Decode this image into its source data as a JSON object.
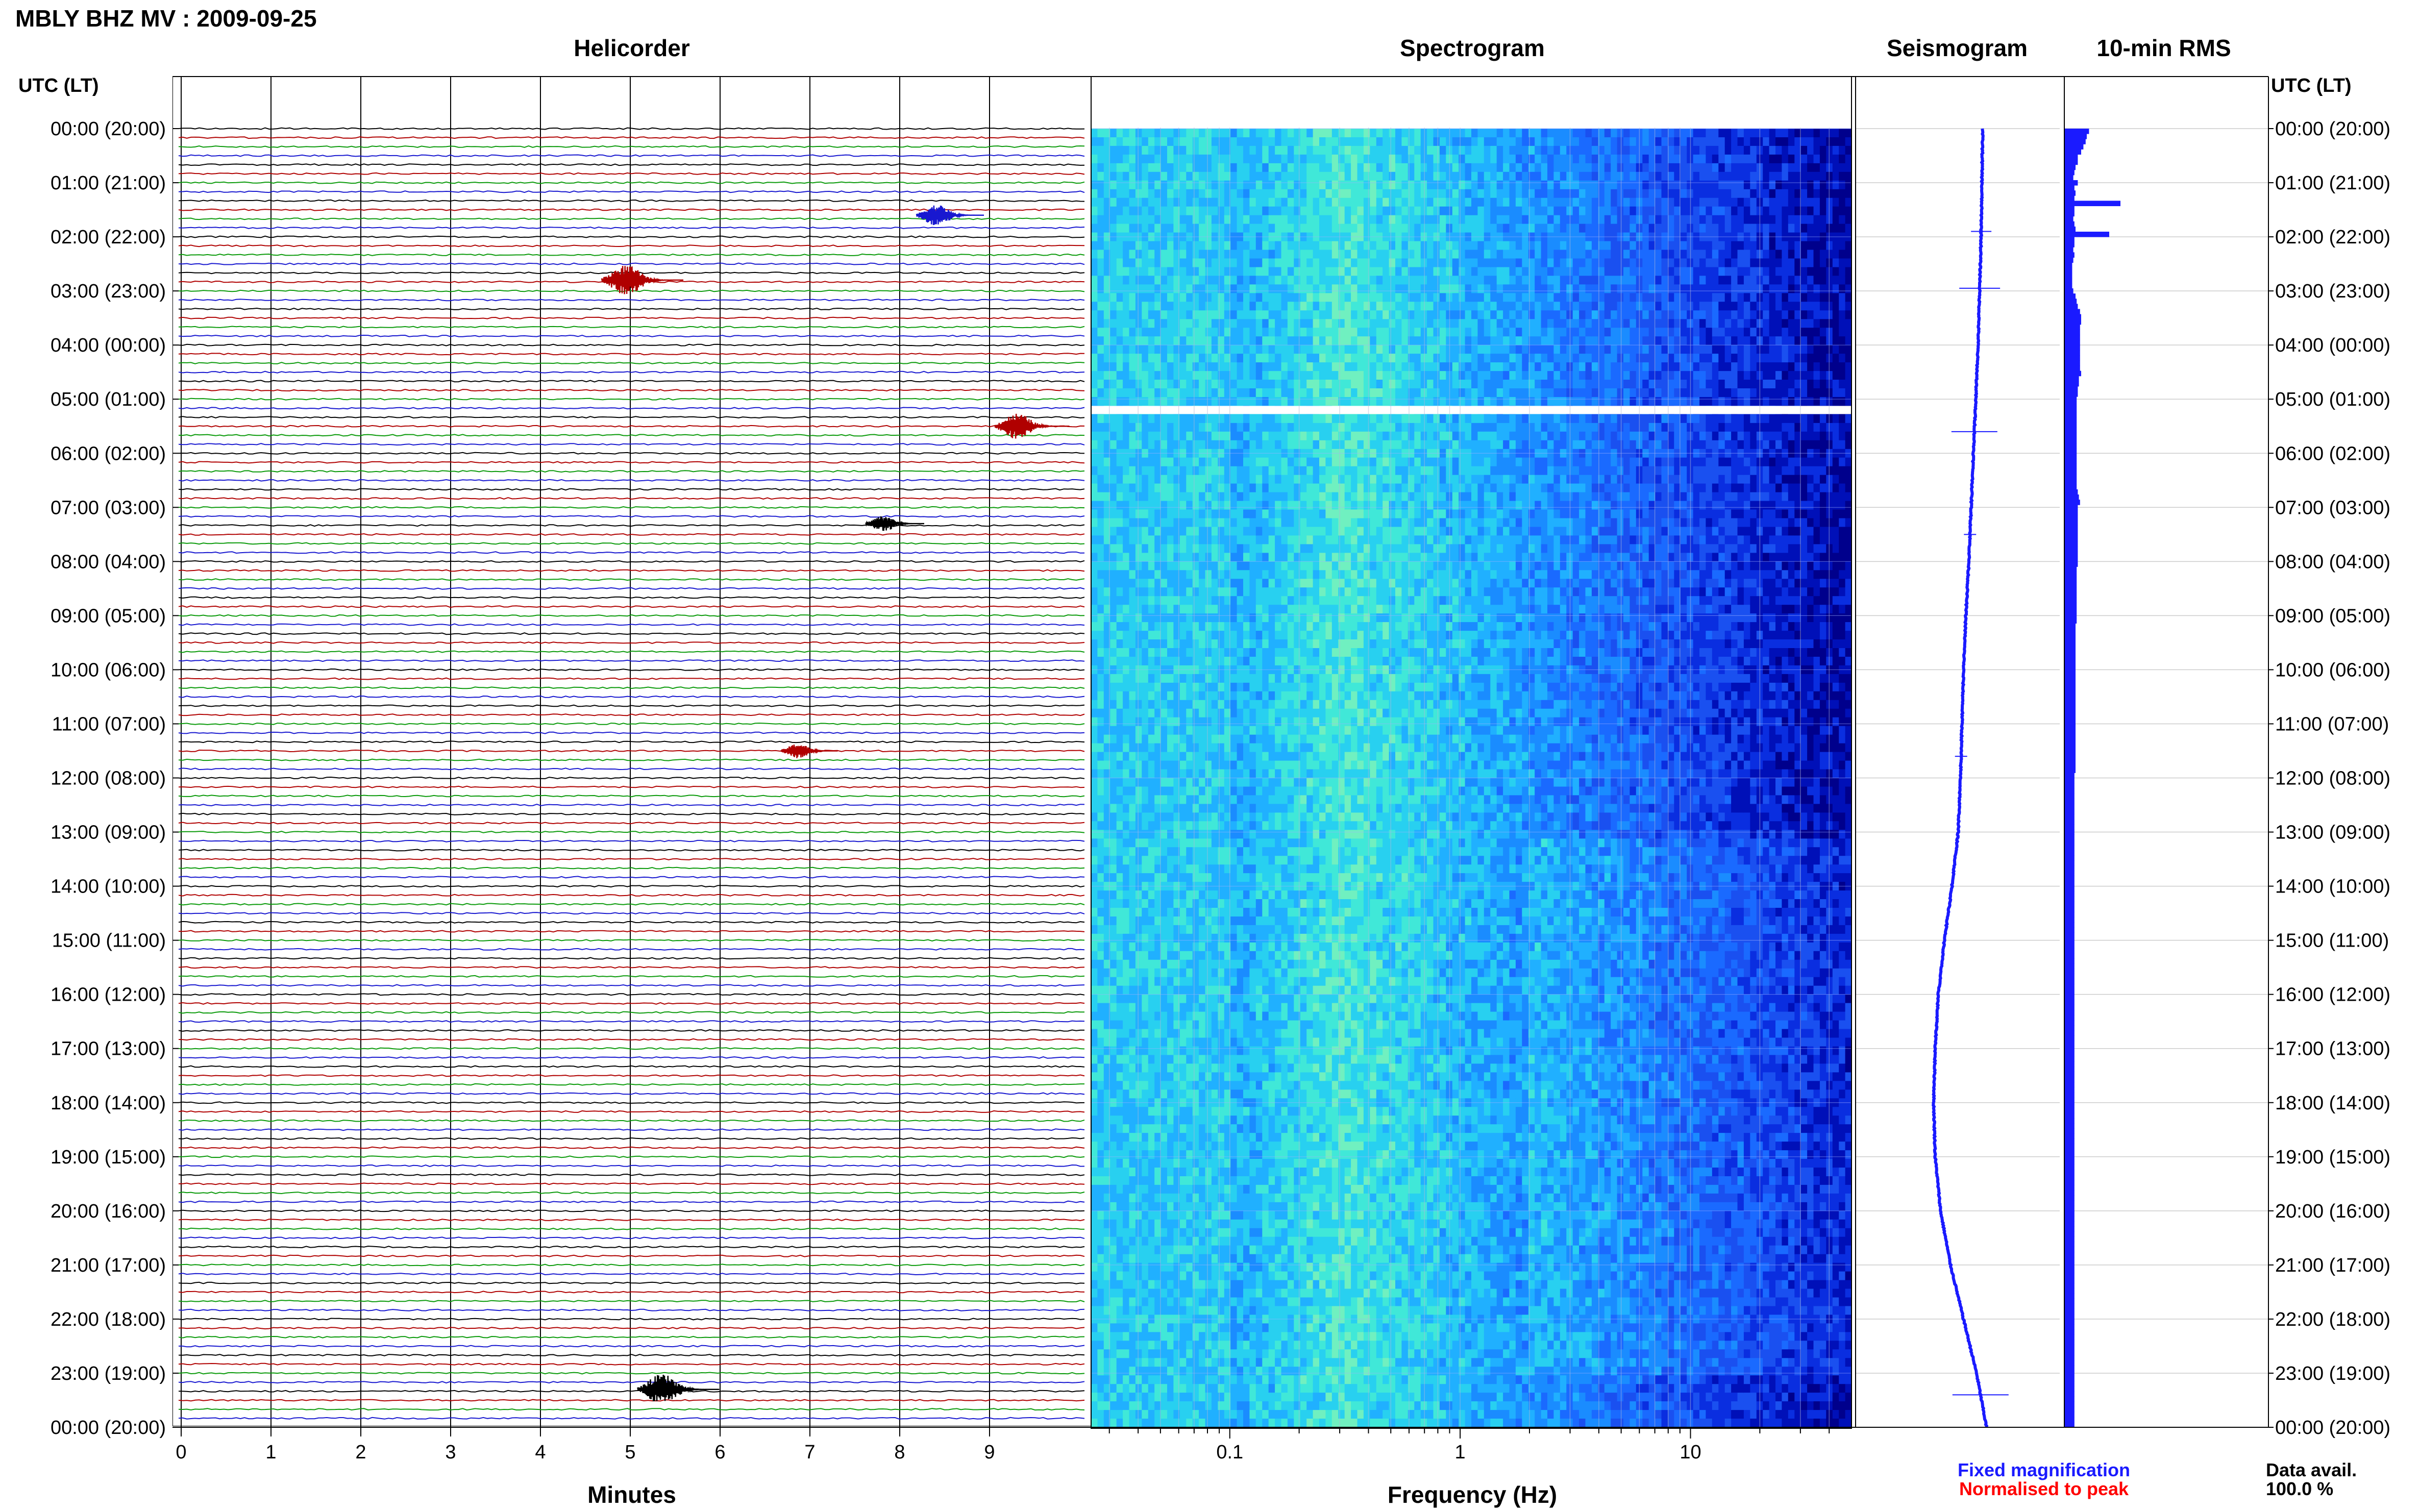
{
  "page_title": "MBLY BHZ MV : 2009-09-25",
  "time_axis_label": "UTC (LT)",
  "time_labels": [
    "00:00 (20:00)",
    "01:00 (21:00)",
    "02:00 (22:00)",
    "03:00 (23:00)",
    "04:00 (00:00)",
    "05:00 (01:00)",
    "06:00 (02:00)",
    "07:00 (03:00)",
    "08:00 (04:00)",
    "09:00 (05:00)",
    "10:00 (06:00)",
    "11:00 (07:00)",
    "12:00 (08:00)",
    "13:00 (09:00)",
    "14:00 (10:00)",
    "15:00 (11:00)",
    "16:00 (12:00)",
    "17:00 (13:00)",
    "18:00 (14:00)",
    "19:00 (15:00)",
    "20:00 (16:00)",
    "21:00 (17:00)",
    "22:00 (18:00)",
    "23:00 (19:00)",
    "00:00 (20:00)"
  ],
  "colors": {
    "trace_cycle": [
      "#000000",
      "#b00000",
      "#0a9a0a",
      "#1818d0"
    ],
    "seismogram": "#1a1aff",
    "rms": "#1a1aff",
    "fixed_legend": "#1a1aff",
    "normalised_legend": "#ff0000",
    "spectrogram_low": "#00008c",
    "spectrogram_mid": "#1a6aff",
    "spectrogram_high": "#40e8d8"
  },
  "chart_data": [
    {
      "type": "line",
      "panel": "helicorder",
      "title": "Helicorder",
      "xlabel": "Minutes",
      "x_ticks": [
        "0",
        "1",
        "2",
        "3",
        "4",
        "5",
        "6",
        "7",
        "8",
        "9"
      ],
      "xlim": [
        0,
        10
      ],
      "rows_per_hour": 6,
      "events": [
        {
          "hour": 1.6,
          "minute": 8.45,
          "amplitude": 0.6,
          "color": "#1818d0"
        },
        {
          "hour": 2.8,
          "minute": 5.0,
          "amplitude": 1.0,
          "color": "#b00000"
        },
        {
          "hour": 5.5,
          "minute": 9.35,
          "amplitude": 0.8,
          "color": "#b00000"
        },
        {
          "hour": 7.3,
          "minute": 7.85,
          "amplitude": 0.35,
          "color": "#000000"
        },
        {
          "hour": 11.5,
          "minute": 6.9,
          "amplitude": 0.3,
          "color": "#b00000"
        },
        {
          "hour": 23.3,
          "minute": 5.4,
          "amplitude": 1.0,
          "color": "#000000"
        }
      ],
      "data_gap_hour": 5.2
    },
    {
      "type": "heatmap",
      "panel": "spectrogram",
      "title": "Spectrogram",
      "xlabel": "Frequency (Hz)",
      "x_scale": "log",
      "xlim": [
        0.025,
        50
      ],
      "x_tick_labels": [
        {
          "value": 0.1,
          "label": "0.1"
        },
        {
          "value": 1,
          "label": "1"
        },
        {
          "value": 10,
          "label": "10"
        }
      ],
      "peak_frequency_hz": 0.3,
      "data_gap_hour": 5.2
    },
    {
      "type": "line",
      "panel": "seismogram",
      "title": "Seismogram",
      "x": [
        0,
        1,
        2,
        3,
        4,
        5,
        6,
        7,
        8,
        9,
        10,
        11,
        12,
        13,
        14,
        15,
        16,
        17,
        18,
        19,
        20,
        21,
        22,
        23,
        24
      ],
      "y": [
        0,
        -0.01,
        -0.02,
        -0.04,
        -0.06,
        -0.09,
        -0.12,
        -0.15,
        -0.18,
        -0.22,
        -0.25,
        -0.27,
        -0.29,
        -0.32,
        -0.4,
        -0.5,
        -0.58,
        -0.62,
        -0.64,
        -0.62,
        -0.55,
        -0.42,
        -0.25,
        -0.08,
        0.05
      ],
      "spikes": [
        {
          "hour": 1.9,
          "amplitude": 0.2
        },
        {
          "hour": 2.95,
          "amplitude": 0.4
        },
        {
          "hour": 5.6,
          "amplitude": 0.45
        },
        {
          "hour": 7.5,
          "amplitude": 0.12
        },
        {
          "hour": 11.6,
          "amplitude": 0.12
        },
        {
          "hour": 23.4,
          "amplitude": 0.55
        }
      ]
    },
    {
      "type": "bar",
      "panel": "rms",
      "title": "10-min RMS",
      "bins_per_hour": 6,
      "values": [
        0.22,
        0.2,
        0.19,
        0.17,
        0.15,
        0.12,
        0.12,
        0.1,
        0.09,
        0.08,
        0.12,
        0.09,
        0.1,
        0.09,
        0.5,
        0.09,
        0.09,
        0.08,
        0.09,
        0.1,
        0.4,
        0.09,
        0.09,
        0.08,
        0.09,
        0.08,
        0.07,
        0.07,
        0.07,
        0.07,
        0.07,
        0.08,
        0.1,
        0.11,
        0.12,
        0.14,
        0.15,
        0.15,
        0.14,
        0.14,
        0.14,
        0.14,
        0.14,
        0.14,
        0.14,
        0.14,
        0.14,
        0.15,
        0.13,
        0.13,
        0.12,
        0.12,
        0.11,
        0.11,
        0.11,
        0.11,
        0.11,
        0.11,
        0.11,
        0.11,
        0.11,
        0.11,
        0.11,
        0.11,
        0.11,
        0.11,
        0.11,
        0.11,
        0.11,
        0.11,
        0.12,
        0.13,
        0.14,
        0.12,
        0.12,
        0.12,
        0.12,
        0.12,
        0.12,
        0.12,
        0.12,
        0.12,
        0.12,
        0.12,
        0.12,
        0.11,
        0.11,
        0.11,
        0.11,
        0.11,
        0.11,
        0.11,
        0.11,
        0.11,
        0.11,
        0.11,
        0.1,
        0.1,
        0.1,
        0.1,
        0.1,
        0.1,
        0.1,
        0.1,
        0.1,
        0.1,
        0.1,
        0.1,
        0.1,
        0.1,
        0.1,
        0.1,
        0.1,
        0.1,
        0.1,
        0.1,
        0.1,
        0.1,
        0.1,
        0.1,
        0.1,
        0.1,
        0.1,
        0.1,
        0.1,
        0.09,
        0.09,
        0.09,
        0.09,
        0.09,
        0.09,
        0.09,
        0.09,
        0.09,
        0.09,
        0.09,
        0.09,
        0.09,
        0.09,
        0.09,
        0.09,
        0.09,
        0.09,
        0.09,
        0.09,
        0.09,
        0.09,
        0.09,
        0.09,
        0.09,
        0.09,
        0.09,
        0.09,
        0.09,
        0.09,
        0.09,
        0.09,
        0.09,
        0.09,
        0.09,
        0.09,
        0.09,
        0.09,
        0.09,
        0.09,
        0.09,
        0.09,
        0.09,
        0.09,
        0.09,
        0.09,
        0.09,
        0.09,
        0.09,
        0.09,
        0.09,
        0.09,
        0.09,
        0.09,
        0.09,
        0.09,
        0.09,
        0.09,
        0.09,
        0.09,
        0.09,
        0.09,
        0.09,
        0.09,
        0.09,
        0.09,
        0.09,
        0.09,
        0.09,
        0.09,
        0.09,
        0.09,
        0.09,
        0.09,
        0.09,
        0.09,
        0.09,
        0.09,
        0.09,
        0.09,
        0.09,
        0.09,
        0.09,
        0.09,
        0.09,
        0.09,
        0.09,
        0.09,
        0.09,
        0.09,
        0.09,
        0.09,
        0.09,
        0.09,
        0.09,
        0.09,
        0.09,
        0.09,
        0.09,
        0.09,
        0.09,
        0.09,
        0.09,
        0.09,
        0.09,
        0.09,
        0.09,
        0.09,
        0.09,
        0.09,
        0.09,
        0.09,
        0.09,
        0.09,
        0.09,
        0.09,
        0.09,
        0.09,
        0.09,
        0.09,
        0.09,
        0.09,
        0.09,
        0.09,
        0.09,
        0.09,
        0.09
      ],
      "xlim": [
        0,
        1
      ]
    }
  ],
  "legend": {
    "fixed": "Fixed magnification",
    "normalised": "Normalised to peak"
  },
  "data_availability": {
    "label": "Data avail.",
    "value": "100.0 %"
  }
}
